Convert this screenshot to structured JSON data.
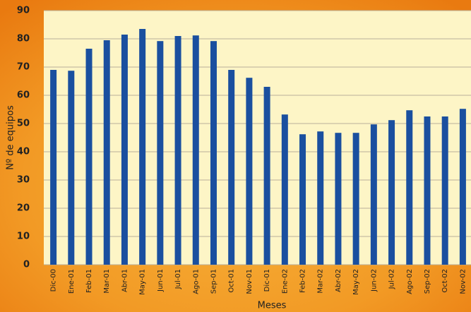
{
  "chart_data": {
    "type": "bar",
    "categories": [
      "Dic-00",
      "Ene-01",
      "Feb-01",
      "Mar-01",
      "Abr-01",
      "May-01",
      "Jun-01",
      "Jul-01",
      "Ago-01",
      "Sep-01",
      "Oct-01",
      "Nov-01",
      "Dic-01",
      "Ene-02",
      "Feb-02",
      "Mar-02",
      "Abr-02",
      "May-02",
      "Jun-02",
      "Jul-02",
      "Ago-02",
      "Sep-02",
      "Oct-02",
      "Nov-02"
    ],
    "values": [
      69,
      68.7,
      76.5,
      79.5,
      81.5,
      83.5,
      79.2,
      81,
      81.2,
      79.2,
      69,
      66.2,
      63,
      53.2,
      46.2,
      47.2,
      46.7,
      46.7,
      49.7,
      51.2,
      54.7,
      52.5,
      52.5,
      55.2
    ],
    "color": "#1a4f9f",
    "ylim": [
      0,
      90
    ],
    "yticks": [
      0,
      10,
      20,
      30,
      40,
      50,
      60,
      70,
      80,
      90
    ],
    "grid": true,
    "y_label": "Nº de equipos",
    "x_label": "Meses"
  }
}
